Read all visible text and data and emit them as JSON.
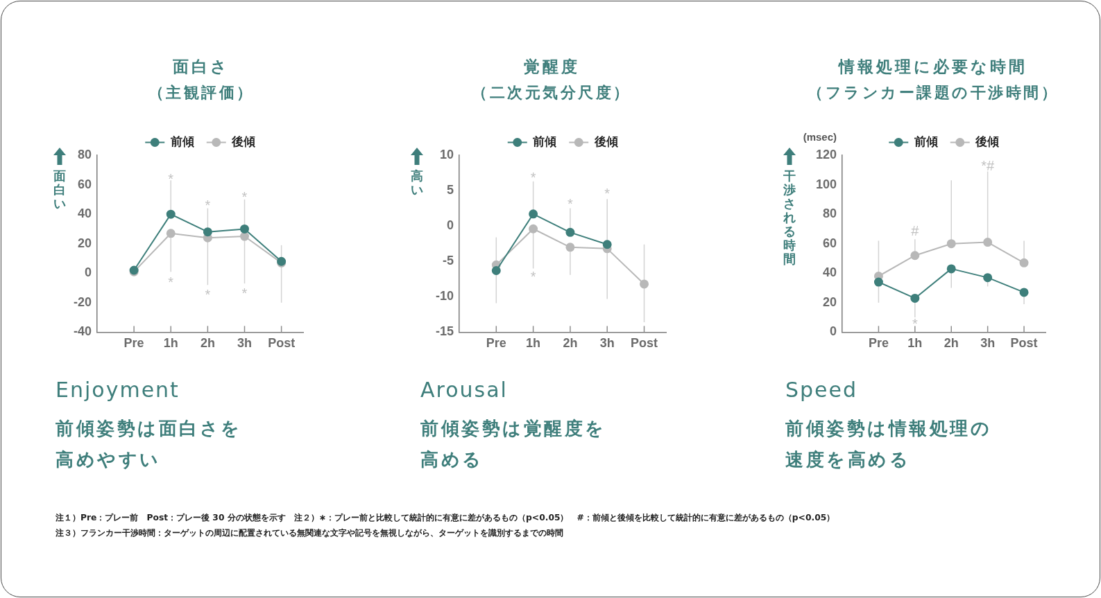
{
  "chart_data": [
    {
      "type": "line",
      "title": "面白さ",
      "subtitle": "（主観評価）",
      "ylabel": "面白い",
      "categories": [
        "Pre",
        "1h",
        "2h",
        "3h",
        "Post"
      ],
      "series": [
        {
          "name": "前傾",
          "color": "#3e7f7b",
          "values": [
            2,
            40,
            28,
            30,
            8
          ],
          "errors": [
            null,
            [
              40,
              63
            ],
            [
              28,
              44
            ],
            [
              30,
              50
            ],
            [
              8,
              19
            ]
          ]
        },
        {
          "name": "後傾",
          "color": "#b8b8b8",
          "values": [
            1,
            27,
            24,
            25,
            7
          ],
          "errors": [
            null,
            [
              1,
              27
            ],
            [
              -8,
              24
            ],
            [
              -7,
              25
            ],
            [
              -20,
              7
            ]
          ]
        }
      ],
      "ylim": [
        -40,
        80
      ],
      "yticks": [
        -40,
        -20,
        0,
        20,
        40,
        60,
        80
      ],
      "legend": "top",
      "marker": "circle",
      "annotations": [
        "Enjoyment",
        "前傾姿勢は面白さを高めやすい",
        "*",
        "*",
        "*",
        "*",
        "*",
        "*"
      ]
    },
    {
      "type": "line",
      "title": "覚醒度",
      "subtitle": "（二次元気分尺度）",
      "ylabel": "高い",
      "categories": [
        "Pre",
        "1h",
        "2h",
        "3h",
        "Post"
      ],
      "series": [
        {
          "name": "前傾",
          "color": "#3e7f7b",
          "values": [
            -6.3,
            1.7,
            -0.9,
            -2.6,
            null
          ],
          "errors": [
            [
              -10.9,
              -6.3
            ],
            [
              1.7,
              6.3
            ],
            [
              -0.9,
              2.5
            ],
            [
              -2.6,
              3.8
            ],
            null
          ]
        },
        {
          "name": "後傾",
          "color": "#b8b8b8",
          "values": [
            -5.5,
            -0.4,
            -3.0,
            -3.2,
            -8.2
          ],
          "errors": [
            [
              -5.5,
              -1.6
            ],
            [
              -6.0,
              -0.4
            ],
            [
              -6.9,
              -3.0
            ],
            [
              -10.3,
              -3.2
            ],
            [
              -13.6,
              -2.6
            ]
          ]
        }
      ],
      "ylim": [
        -15,
        10
      ],
      "yticks": [
        -15,
        -10,
        -5,
        0,
        5,
        10
      ],
      "legend": "top",
      "marker": "circle",
      "annotations": [
        "Arousal",
        "前傾姿勢は覚醒度を高める",
        "*",
        "*",
        "*",
        "*"
      ]
    },
    {
      "type": "line",
      "title": "情報処理に必要な時間",
      "subtitle": "（フランカー課題の干渉時間）",
      "ylabel": "干渉される時間",
      "categories": [
        "Pre",
        "1h",
        "2h",
        "3h",
        "Post"
      ],
      "series": [
        {
          "name": "前傾",
          "color": "#3e7f7b",
          "values": [
            34,
            23,
            43,
            37,
            27
          ],
          "errors": [
            [
              20,
              34
            ],
            [
              10,
              23
            ],
            [
              30,
              43
            ],
            [
              31,
              37
            ],
            [
              19,
              27
            ]
          ]
        },
        {
          "name": "後傾",
          "color": "#b8b8b8",
          "values": [
            38,
            52,
            60,
            61,
            47
          ],
          "errors": [
            [
              38,
              62
            ],
            [
              52,
              63
            ],
            [
              60,
              103
            ],
            [
              61,
              109
            ],
            [
              47,
              62
            ]
          ]
        }
      ],
      "ylim": [
        0,
        120
      ],
      "yticks": [
        0,
        20,
        40,
        60,
        80,
        100,
        120
      ],
      "legend": "top",
      "marker": "circle",
      "annotations": [
        "Speed",
        "前傾姿勢は情報処理の速度を高める",
        "(msec)",
        "#",
        "*",
        "*#"
      ]
    },
    {
      "type": "other",
      "annotations": [
        "注１）Pre：プレー前　Post：プレー後 30 分の状態を示す　注２）∗：プレー前と比較して統計的に有意に差があるもの（p<0.05）　#：前傾と後傾を比較して統計的に有意に差があるもの（p<0.05）",
        "注３）フランカー干渉時間：ターゲットの周辺に配置されている無関連な文字や記号を無視しながら、ターゲットを識別するまでの時間"
      ]
    }
  ]
}
